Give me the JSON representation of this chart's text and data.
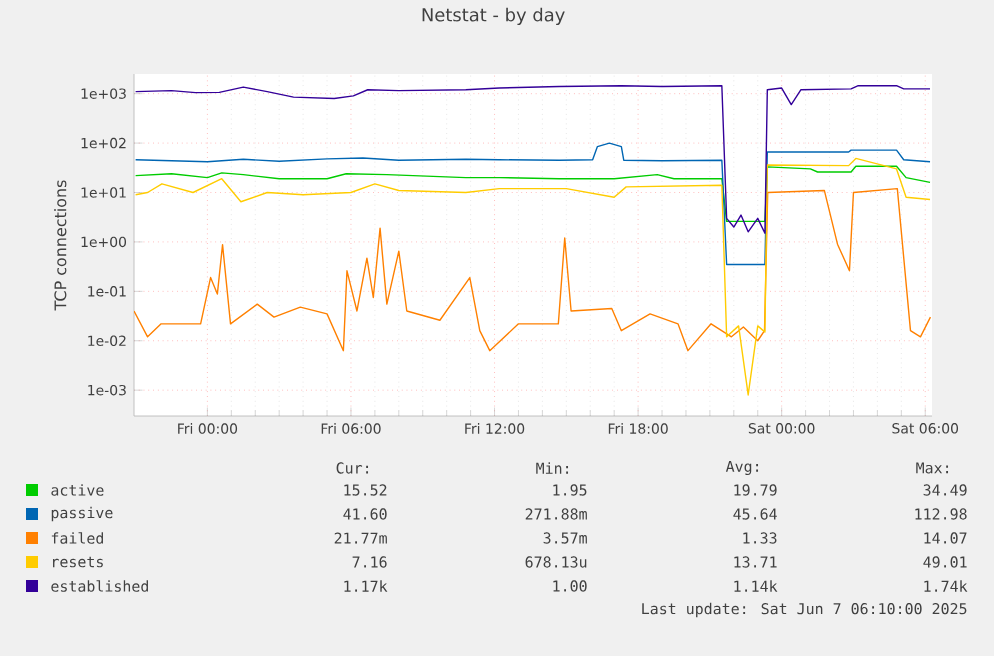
{
  "chart_data": {
    "type": "line",
    "title": "Netstat - by day",
    "ylabel": "TCP connections",
    "log": "y",
    "grid": true,
    "legend": "bottom",
    "marker": "none",
    "line_style": "solid",
    "xlim": [
      "2025-06-05T20:56",
      "2025-06-07T06:17"
    ],
    "ylim": [
      0.0003,
      2500
    ],
    "xticks": [
      {
        "value": "2025-06-06T00:00",
        "label": "Fri 00:00"
      },
      {
        "value": "2025-06-06T06:00",
        "label": "Fri 06:00"
      },
      {
        "value": "2025-06-06T12:00",
        "label": "Fri 12:00"
      },
      {
        "value": "2025-06-06T18:00",
        "label": "Fri 18:00"
      },
      {
        "value": "2025-06-07T00:00",
        "label": "Sat 00:00"
      },
      {
        "value": "2025-06-07T06:00",
        "label": "Sat 06:00"
      }
    ],
    "yticks": [
      {
        "value": 0.001,
        "label": "1e-03"
      },
      {
        "value": 0.01,
        "label": "1e-02"
      },
      {
        "value": 0.1,
        "label": "1e-01"
      },
      {
        "value": 1,
        "label": "1e+00"
      },
      {
        "value": 10,
        "label": "1e+01"
      },
      {
        "value": 100,
        "label": "1e+02"
      },
      {
        "value": 1000,
        "label": "1e+03"
      }
    ],
    "series": [
      {
        "name": "active",
        "color": "#00cc00",
        "x": [
          "2025-06-05T21:00",
          "2025-06-05T22:30",
          "2025-06-06T00:00",
          "2025-06-06T00:36",
          "2025-06-06T01:30",
          "2025-06-06T03:00",
          "2025-06-06T05:00",
          "2025-06-06T05:48",
          "2025-06-06T07:30",
          "2025-06-06T10:48",
          "2025-06-06T12:12",
          "2025-06-06T14:42",
          "2025-06-06T17:00",
          "2025-06-06T18:48",
          "2025-06-06T19:30",
          "2025-06-06T21:30",
          "2025-06-06T21:42",
          "2025-06-06T23:18",
          "2025-06-06T23:24",
          "2025-06-07T01:12",
          "2025-06-07T01:30",
          "2025-06-07T02:54",
          "2025-06-07T03:06",
          "2025-06-07T04:48",
          "2025-06-07T05:12",
          "2025-06-07T06:12"
        ],
        "values": [
          22,
          24,
          20,
          25,
          23,
          19,
          19,
          24,
          23,
          20,
          20,
          19,
          19,
          23,
          19,
          19,
          2.6,
          2.6,
          33,
          30,
          26,
          26,
          34,
          34,
          20,
          16
        ]
      },
      {
        "name": "passive",
        "color": "#0066b3",
        "x": [
          "2025-06-05T21:00",
          "2025-06-05T22:30",
          "2025-06-06T00:00",
          "2025-06-06T01:30",
          "2025-06-06T03:00",
          "2025-06-06T05:00",
          "2025-06-06T06:30",
          "2025-06-06T08:00",
          "2025-06-06T10:48",
          "2025-06-06T12:12",
          "2025-06-06T14:42",
          "2025-06-06T16:06",
          "2025-06-06T16:18",
          "2025-06-06T16:48",
          "2025-06-06T17:18",
          "2025-06-06T17:24",
          "2025-06-06T19:00",
          "2025-06-06T21:30",
          "2025-06-06T21:42",
          "2025-06-06T23:18",
          "2025-06-06T23:24",
          "2025-06-07T02:48",
          "2025-06-07T02:54",
          "2025-06-07T04:48",
          "2025-06-07T05:06",
          "2025-06-07T06:12"
        ],
        "values": [
          46,
          44,
          42,
          47,
          43,
          48,
          50,
          45,
          47,
          46,
          45,
          46,
          85,
          100,
          85,
          45,
          44,
          45,
          0.35,
          0.35,
          66,
          66,
          72,
          72,
          46,
          42
        ]
      },
      {
        "name": "failed",
        "color": "#ff8000",
        "x": [
          "2025-06-05T20:56",
          "2025-06-05T21:30",
          "2025-06-05T22:04",
          "2025-06-05T23:43",
          "2025-06-06T00:08",
          "2025-06-06T00:25",
          "2025-06-06T00:38",
          "2025-06-06T00:58",
          "2025-06-06T02:05",
          "2025-06-06T02:47",
          "2025-06-06T03:53",
          "2025-06-06T05:00",
          "2025-06-06T05:41",
          "2025-06-06T05:50",
          "2025-06-06T06:15",
          "2025-06-06T06:40",
          "2025-06-06T06:56",
          "2025-06-06T07:13",
          "2025-06-06T07:30",
          "2025-06-06T08:00",
          "2025-06-06T08:20",
          "2025-06-06T09:43",
          "2025-06-06T10:58",
          "2025-06-06T11:23",
          "2025-06-06T11:48",
          "2025-06-06T13:00",
          "2025-06-06T14:40",
          "2025-06-06T14:56",
          "2025-06-06T15:12",
          "2025-06-06T16:54",
          "2025-06-06T17:18",
          "2025-06-06T18:30",
          "2025-06-06T19:40",
          "2025-06-06T20:05",
          "2025-06-06T21:03",
          "2025-06-06T21:54",
          "2025-06-06T22:24",
          "2025-06-06T23:00",
          "2025-06-06T23:17",
          "2025-06-06T23:25",
          "2025-06-07T01:47",
          "2025-06-07T02:20",
          "2025-06-07T02:50",
          "2025-06-07T03:00",
          "2025-06-07T04:50",
          "2025-06-07T05:23",
          "2025-06-07T05:48",
          "2025-06-07T06:13"
        ],
        "values": [
          0.04,
          0.012,
          0.022,
          0.022,
          0.19,
          0.088,
          0.88,
          0.022,
          0.055,
          0.03,
          0.048,
          0.035,
          0.0063,
          0.26,
          0.04,
          0.47,
          0.075,
          1.9,
          0.055,
          0.65,
          0.04,
          0.026,
          0.19,
          0.016,
          0.0063,
          0.022,
          0.022,
          1.2,
          0.04,
          0.045,
          0.016,
          0.035,
          0.022,
          0.0063,
          0.022,
          0.012,
          0.019,
          0.01,
          0.016,
          10,
          11,
          0.9,
          0.26,
          10,
          12,
          0.016,
          0.012,
          0.03
        ]
      },
      {
        "name": "resets",
        "color": "#ffcc00",
        "x": [
          "2025-06-05T21:00",
          "2025-06-05T21:30",
          "2025-06-05T22:06",
          "2025-06-05T23:24",
          "2025-06-06T00:36",
          "2025-06-06T01:24",
          "2025-06-06T02:30",
          "2025-06-06T04:00",
          "2025-06-06T06:00",
          "2025-06-06T07:00",
          "2025-06-06T08:00",
          "2025-06-06T10:48",
          "2025-06-06T12:12",
          "2025-06-06T15:00",
          "2025-06-06T17:00",
          "2025-06-06T17:30",
          "2025-06-06T21:30",
          "2025-06-06T21:42",
          "2025-06-06T22:12",
          "2025-06-06T22:36",
          "2025-06-06T23:00",
          "2025-06-06T23:18",
          "2025-06-06T23:24",
          "2025-06-07T02:48",
          "2025-06-07T03:06",
          "2025-06-07T04:48",
          "2025-06-07T05:12",
          "2025-06-07T06:12"
        ],
        "values": [
          9,
          10,
          15,
          10,
          19,
          6.5,
          10,
          9,
          10,
          15,
          11,
          10,
          12,
          12,
          8,
          13,
          14,
          0.012,
          0.02,
          0.0008,
          0.02,
          0.015,
          36,
          35,
          49,
          30,
          8,
          7.2
        ]
      },
      {
        "name": "established",
        "color": "#330099",
        "x": [
          "2025-06-05T21:00",
          "2025-06-05T22:30",
          "2025-06-05T23:30",
          "2025-06-06T00:30",
          "2025-06-06T01:30",
          "2025-06-06T02:30",
          "2025-06-06T03:36",
          "2025-06-06T05:18",
          "2025-06-06T06:06",
          "2025-06-06T06:42",
          "2025-06-06T08:00",
          "2025-06-06T10:48",
          "2025-06-06T12:12",
          "2025-06-06T14:42",
          "2025-06-06T17:18",
          "2025-06-06T19:00",
          "2025-06-06T21:30",
          "2025-06-06T21:42",
          "2025-06-06T22:00",
          "2025-06-06T22:18",
          "2025-06-06T22:36",
          "2025-06-06T23:00",
          "2025-06-06T23:18",
          "2025-06-06T23:24",
          "2025-06-07T00:00",
          "2025-06-07T00:24",
          "2025-06-07T00:48",
          "2025-06-07T02:54",
          "2025-06-07T03:12",
          "2025-06-07T04:48",
          "2025-06-07T05:06",
          "2025-06-07T06:12"
        ],
        "values": [
          1100,
          1150,
          1050,
          1060,
          1360,
          1100,
          850,
          800,
          900,
          1200,
          1150,
          1200,
          1300,
          1400,
          1450,
          1400,
          1450,
          3,
          2,
          3.5,
          1.6,
          3,
          1.5,
          1200,
          1300,
          600,
          1200,
          1250,
          1450,
          1450,
          1250,
          1250
        ]
      }
    ],
    "annotations": [
      "Cur:",
      "Min:",
      "Avg:",
      "Max:",
      "15.52",
      "1.95",
      "19.79",
      "34.49",
      "41.60",
      "271.88m",
      "45.64",
      "112.98",
      "21.77m",
      "3.57m",
      "1.33",
      "14.07",
      "7.16",
      "678.13u",
      "13.71",
      "49.01",
      "1.17k",
      "1.00",
      "1.14k",
      "1.74k",
      "Last update:  Sat Jun  7 06:10:00 2025"
    ]
  }
}
